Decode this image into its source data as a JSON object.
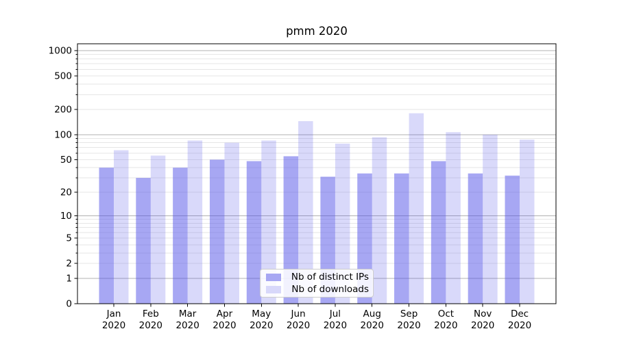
{
  "chart_data": {
    "type": "bar",
    "title": "pmm 2020",
    "categories": [
      "Jan",
      "Feb",
      "Mar",
      "Apr",
      "May",
      "Jun",
      "Jul",
      "Aug",
      "Sep",
      "Oct",
      "Nov",
      "Dec"
    ],
    "year_label": "2020",
    "series": [
      {
        "name": "Nb of distinct IPs",
        "color": "#a7a7f3",
        "fill": "rgba(80,80,232,0.5)",
        "values": [
          40,
          30,
          40,
          50,
          48,
          55,
          31,
          34,
          34,
          48,
          34,
          32
        ]
      },
      {
        "name": "Nb of downloads",
        "color": "#d8d8fa",
        "fill": "rgba(80,80,232,0.22)",
        "values": [
          65,
          56,
          85,
          80,
          85,
          145,
          78,
          93,
          180,
          107,
          100,
          87
        ]
      }
    ],
    "yscale": "log1p",
    "yticks": [
      0,
      1,
      2,
      5,
      10,
      20,
      50,
      100,
      200,
      500,
      1000
    ],
    "ylim": [
      0,
      1200
    ],
    "grid": {
      "major_at": [
        1,
        10,
        100,
        1000
      ],
      "major_color": "#b0b0b0",
      "minor_color": "#e6e6e6"
    },
    "axis_color": "#000000",
    "legend_position": "lower center"
  }
}
